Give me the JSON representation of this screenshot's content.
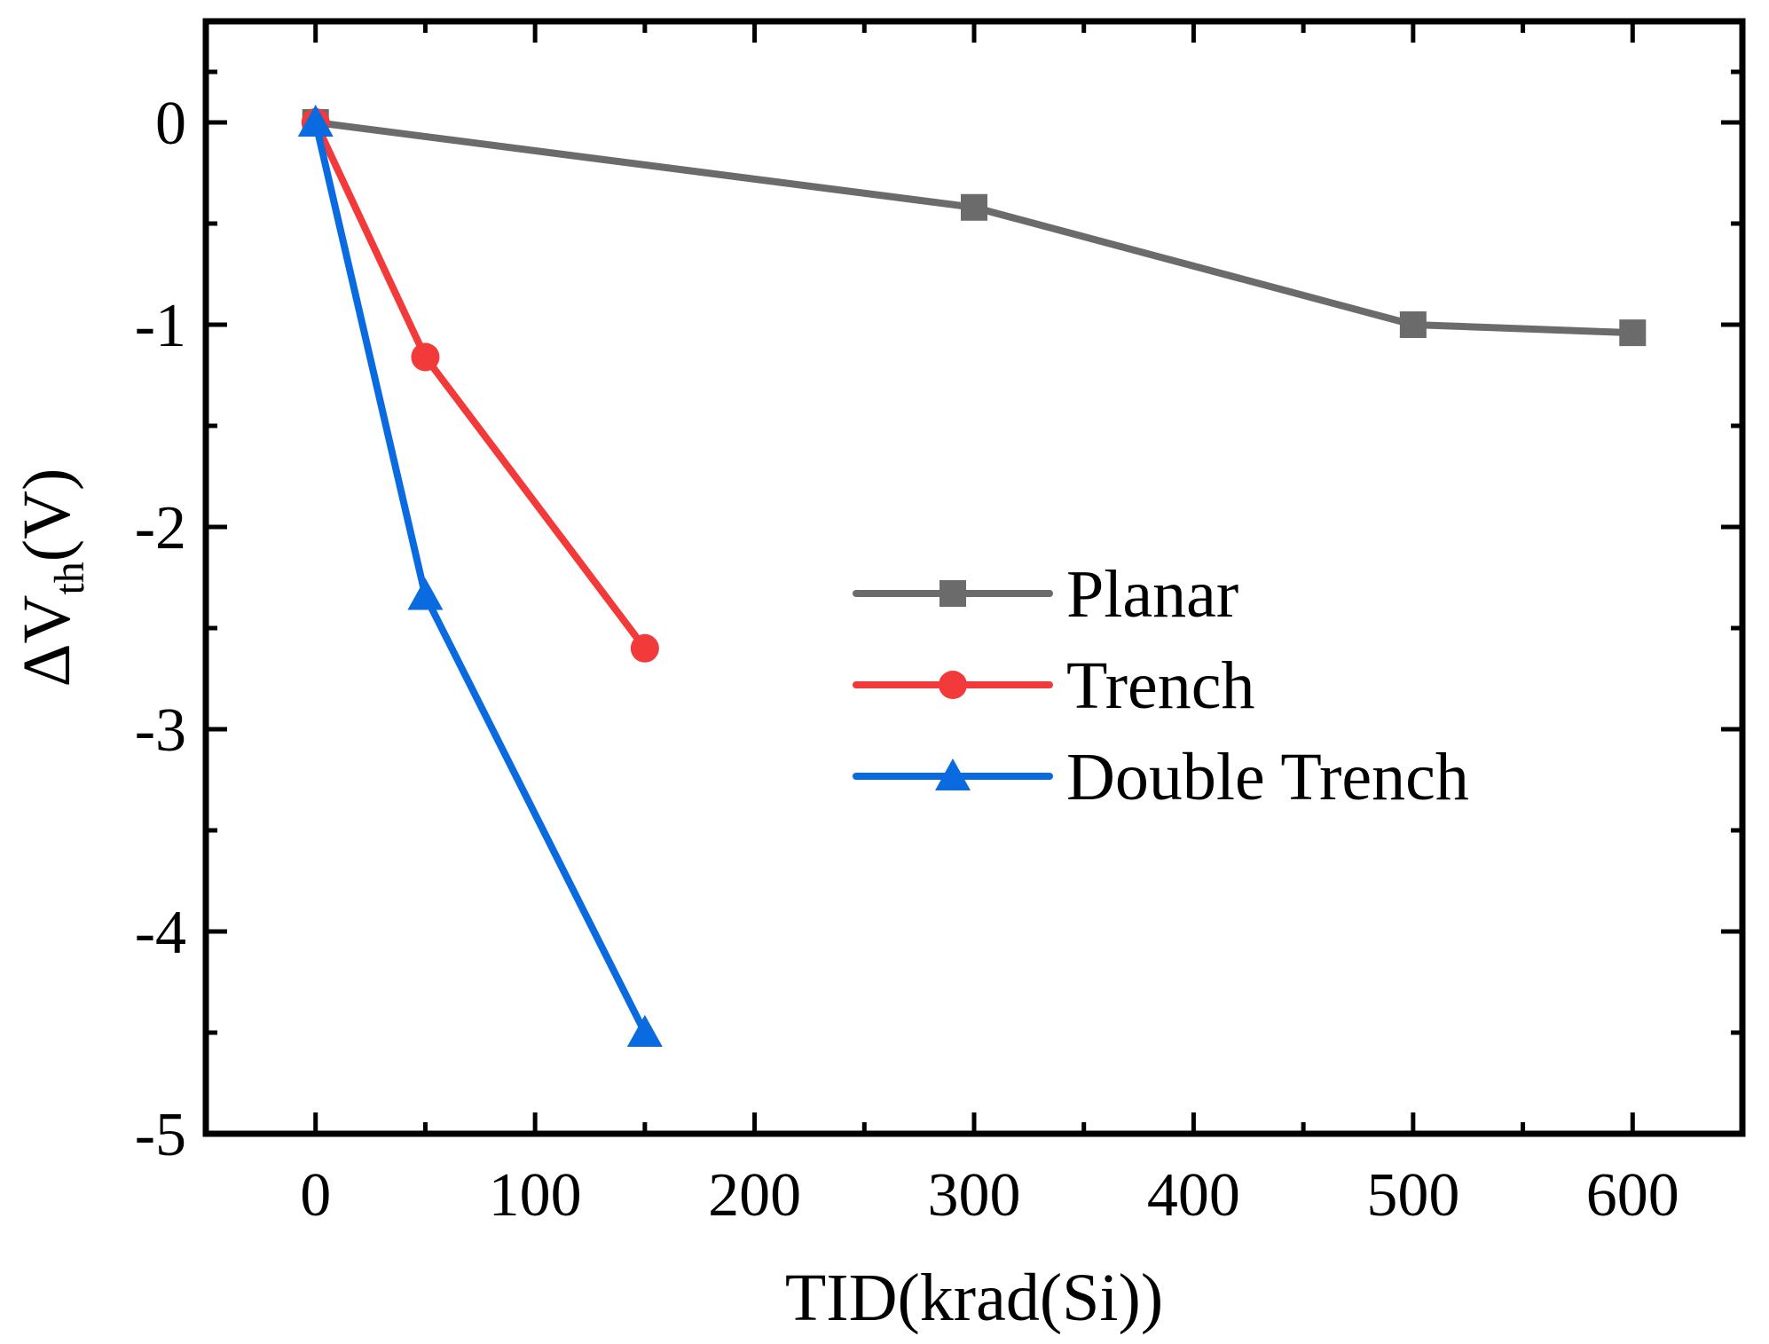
{
  "chart_data": {
    "type": "line",
    "title": "",
    "xlabel": "TID(krad(Si))",
    "ylabel": {
      "prefix": "ΔV",
      "subscript": "th",
      "suffix": "(V)"
    },
    "xlim": [
      -50,
      650
    ],
    "ylim": [
      -5,
      0.5
    ],
    "xticks": [
      0,
      100,
      200,
      300,
      400,
      500,
      600
    ],
    "yticks": [
      0,
      -1,
      -2,
      -3,
      -4,
      -5
    ],
    "grid": false,
    "legend_position": "center-right",
    "series": [
      {
        "name": "Planar",
        "color": "#6b6b6b",
        "marker": "square",
        "x": [
          0,
          300,
          500,
          600
        ],
        "y": [
          0,
          -0.42,
          -1.0,
          -1.04
        ]
      },
      {
        "name": "Trench",
        "color": "#f23a3a",
        "marker": "circle",
        "x": [
          0,
          50,
          150
        ],
        "y": [
          0,
          -1.16,
          -2.6
        ]
      },
      {
        "name": "Double Trench",
        "color": "#0a6ae0",
        "marker": "triangle",
        "x": [
          0,
          50,
          150
        ],
        "y": [
          0,
          -2.34,
          -4.5
        ]
      }
    ]
  }
}
